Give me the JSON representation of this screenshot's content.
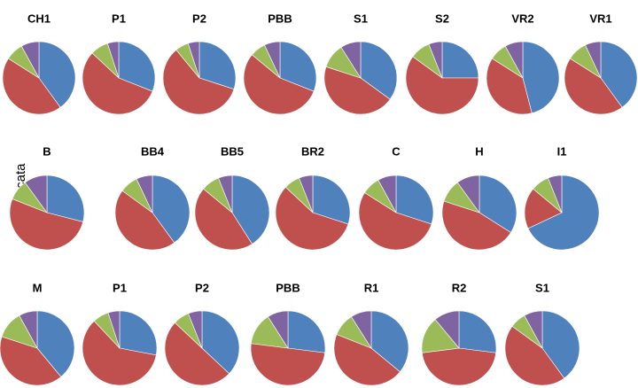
{
  "figure": {
    "species_label": "M. truncata"
  },
  "colors": {
    "blue": "#4F81BD",
    "red": "#C0504D",
    "green": "#9BBB59",
    "purple": "#8064A2"
  },
  "chart_data": {
    "type": "pie",
    "slice_order": [
      "blue",
      "red",
      "green",
      "purple"
    ],
    "rows": [
      {
        "pies": [
          {
            "title": "CH1",
            "values": [
              40,
              44,
              8,
              8
            ]
          },
          {
            "title": "P1",
            "values": [
              31,
              56,
              8,
              5
            ]
          },
          {
            "title": "P2",
            "values": [
              30,
              59,
              6,
              5
            ]
          },
          {
            "title": "PBB",
            "values": [
              31,
              55,
              7,
              7
            ]
          },
          {
            "title": "S1",
            "values": [
              35,
              45,
              11,
              9
            ]
          },
          {
            "title": "S2",
            "values": [
              25,
              60,
              9,
              6
            ]
          },
          {
            "title": "VR2",
            "values": [
              46,
              38,
              8,
              8
            ]
          },
          {
            "title": "VR1",
            "values": [
              40,
              44,
              9,
              7
            ]
          }
        ]
      },
      {
        "pies": [
          {
            "title": "B",
            "values": [
              29,
              52,
              9,
              10
            ]
          },
          {
            "title": "BB4",
            "values": [
              40,
              45,
              8,
              7
            ]
          },
          {
            "title": "BB5",
            "values": [
              41,
              45,
              8,
              6
            ]
          },
          {
            "title": "BR2",
            "values": [
              30,
              57,
              7,
              6
            ]
          },
          {
            "title": "C",
            "values": [
              30,
              54,
              8,
              8
            ]
          },
          {
            "title": "H",
            "values": [
              34,
              46,
              10,
              10
            ]
          },
          {
            "title": "I1",
            "values": [
              68,
              18,
              8,
              6
            ]
          }
        ]
      },
      {
        "pies": [
          {
            "title": "M",
            "values": [
              39,
              41,
              12,
              8
            ]
          },
          {
            "title": "P1",
            "values": [
              28,
              60,
              7,
              5
            ]
          },
          {
            "title": "P2",
            "values": [
              37,
              50,
              7,
              6
            ]
          },
          {
            "title": "PBB",
            "values": [
              27,
              50,
              14,
              9
            ]
          },
          {
            "title": "R1",
            "values": [
              36,
              45,
              10,
              9
            ]
          },
          {
            "title": "R2",
            "values": [
              27,
              46,
              16,
              11
            ]
          },
          {
            "title": "S1",
            "values": [
              40,
              45,
              7,
              8
            ]
          }
        ]
      }
    ]
  }
}
